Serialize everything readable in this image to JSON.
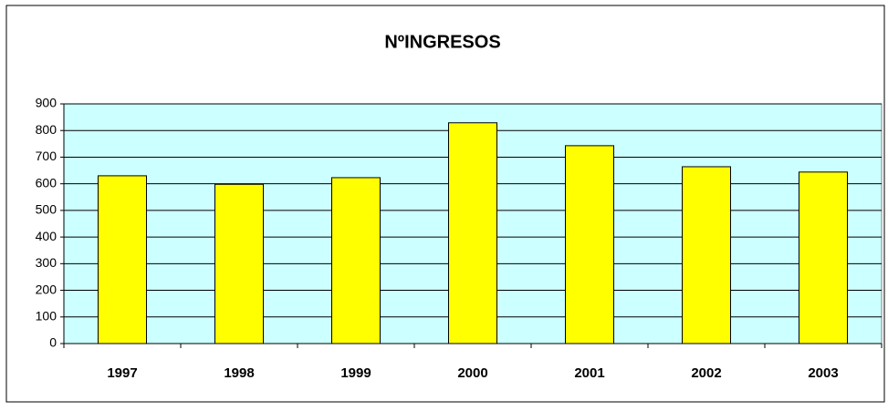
{
  "chart_data": {
    "type": "bar",
    "title": "NºINGRESOS",
    "categories": [
      "1997",
      "1998",
      "1999",
      "2000",
      "2001",
      "2002",
      "2003"
    ],
    "values": [
      630,
      598,
      623,
      829,
      743,
      664,
      644
    ],
    "color": "#ffff00",
    "ylim": [
      0,
      900
    ],
    "yticks": [
      0,
      100,
      200,
      300,
      400,
      500,
      600,
      700,
      800,
      900
    ],
    "grid": true
  }
}
